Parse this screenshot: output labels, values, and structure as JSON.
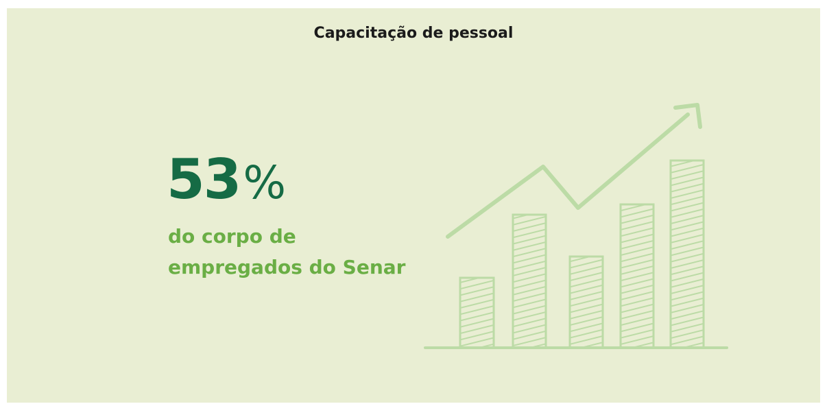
{
  "title": "Capacitação de pessoal",
  "stat": {
    "number": "53",
    "unit": "%"
  },
  "description": {
    "lines": [
      "do corpo de",
      "empregados do Senar"
    ]
  }
}
